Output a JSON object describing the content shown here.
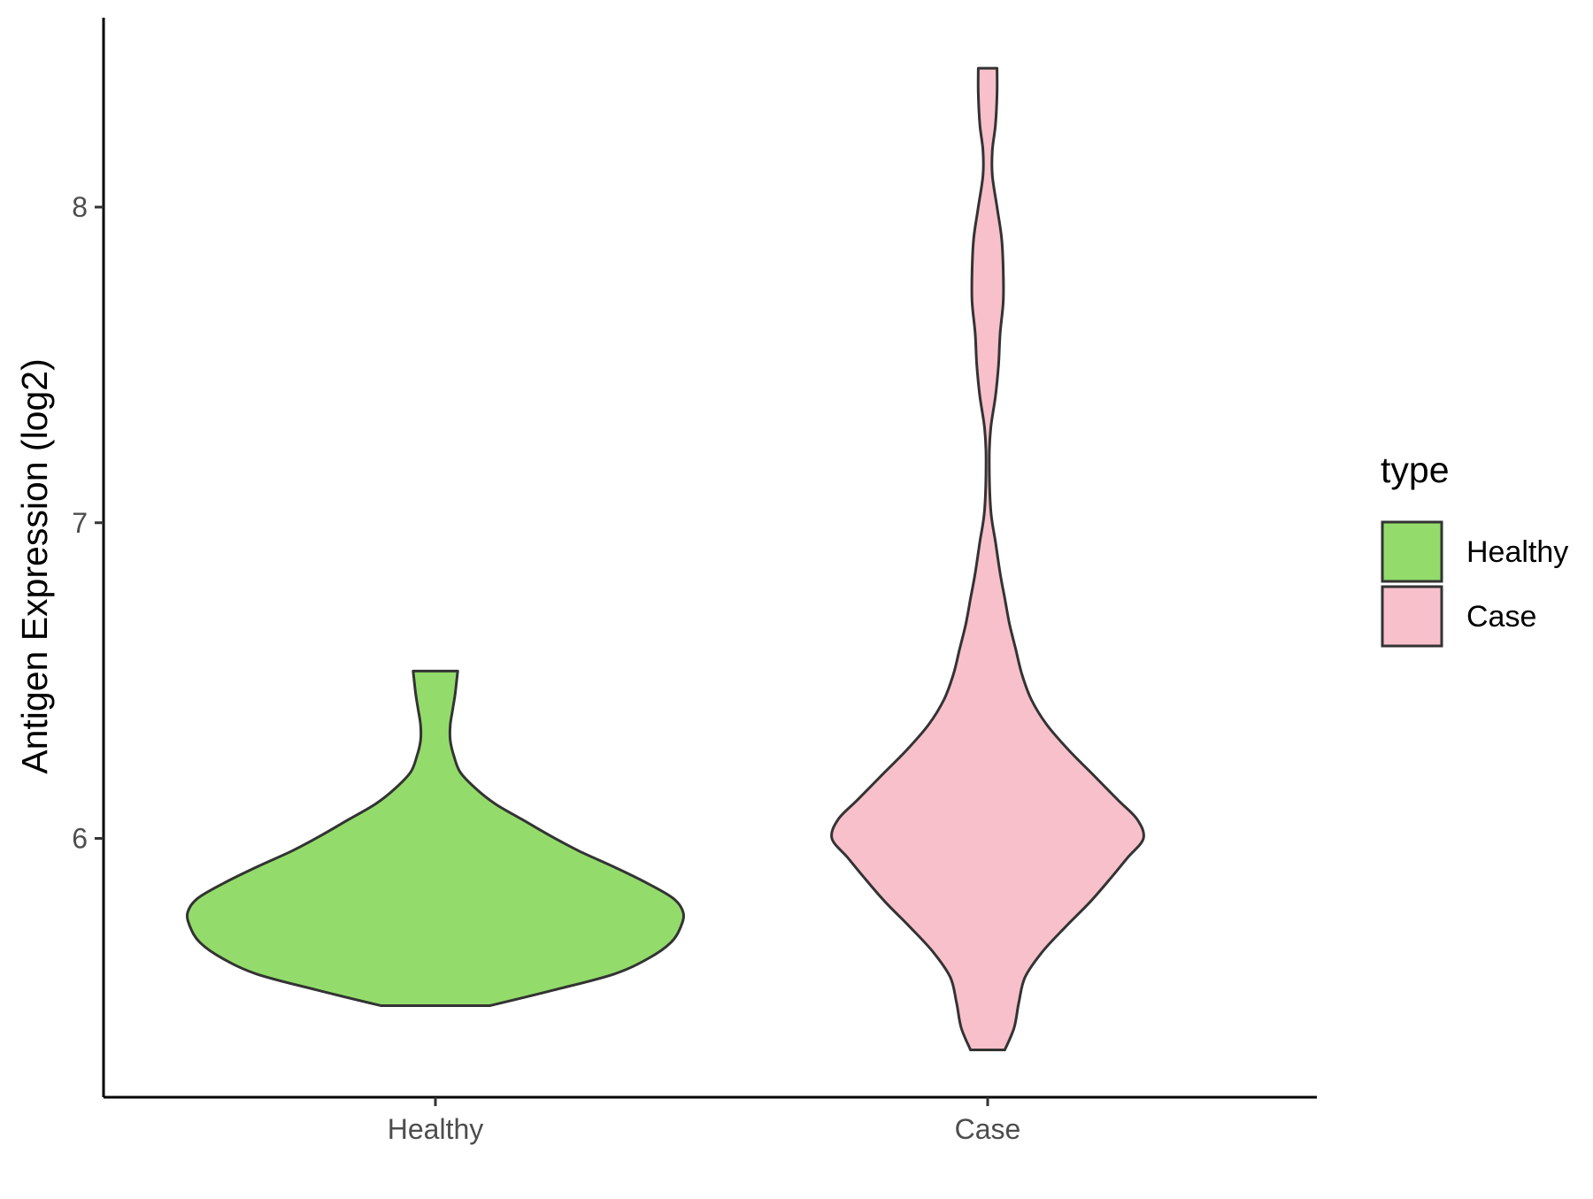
{
  "chart_data": {
    "type": "violin",
    "title": "",
    "xlabel": "",
    "ylabel": "Antigen Expression (log2)",
    "categories": [
      "Healthy",
      "Case"
    ],
    "yticks": [
      6,
      7,
      8
    ],
    "ylim": [
      5.18,
      8.6
    ],
    "grid": false,
    "legend": {
      "title": "type",
      "position": "right",
      "entries": [
        {
          "label": "Healthy",
          "color": "#93dc6b"
        },
        {
          "label": "Case",
          "color": "#f7c0cb"
        }
      ]
    },
    "outline_color": "#333333",
    "series": [
      {
        "category": "Healthy",
        "color": "#93dc6b",
        "ymin": 5.47,
        "ymax": 6.53,
        "density_profile": [
          [
            5.47,
            0.22
          ],
          [
            5.52,
            0.48
          ],
          [
            5.57,
            0.72
          ],
          [
            5.62,
            0.86
          ],
          [
            5.67,
            0.95
          ],
          [
            5.72,
            0.99
          ],
          [
            5.765,
            1.0
          ],
          [
            5.81,
            0.96
          ],
          [
            5.86,
            0.85
          ],
          [
            5.91,
            0.72
          ],
          [
            5.96,
            0.58
          ],
          [
            6.01,
            0.46
          ],
          [
            6.06,
            0.35
          ],
          [
            6.11,
            0.24
          ],
          [
            6.16,
            0.16
          ],
          [
            6.21,
            0.1
          ],
          [
            6.26,
            0.075
          ],
          [
            6.31,
            0.06
          ],
          [
            6.36,
            0.06
          ],
          [
            6.41,
            0.07
          ],
          [
            6.46,
            0.08
          ],
          [
            6.53,
            0.09
          ]
        ]
      },
      {
        "category": "Case",
        "color": "#f7c0cb",
        "ymin": 5.33,
        "ymax": 8.44,
        "density_profile": [
          [
            5.33,
            0.11
          ],
          [
            5.4,
            0.17
          ],
          [
            5.48,
            0.2
          ],
          [
            5.56,
            0.24
          ],
          [
            5.64,
            0.35
          ],
          [
            5.72,
            0.5
          ],
          [
            5.8,
            0.66
          ],
          [
            5.88,
            0.8
          ],
          [
            5.94,
            0.9
          ],
          [
            6.0,
            1.0
          ],
          [
            6.06,
            0.96
          ],
          [
            6.12,
            0.84
          ],
          [
            6.2,
            0.68
          ],
          [
            6.28,
            0.52
          ],
          [
            6.36,
            0.38
          ],
          [
            6.44,
            0.28
          ],
          [
            6.52,
            0.22
          ],
          [
            6.6,
            0.18
          ],
          [
            6.68,
            0.14
          ],
          [
            6.76,
            0.11
          ],
          [
            6.84,
            0.08
          ],
          [
            6.94,
            0.05
          ],
          [
            7.04,
            0.02
          ],
          [
            7.2,
            0.01
          ],
          [
            7.3,
            0.02
          ],
          [
            7.4,
            0.05
          ],
          [
            7.5,
            0.07
          ],
          [
            7.6,
            0.08
          ],
          [
            7.7,
            0.1
          ],
          [
            7.8,
            0.1
          ],
          [
            7.9,
            0.09
          ],
          [
            8.0,
            0.06
          ],
          [
            8.1,
            0.03
          ],
          [
            8.18,
            0.03
          ],
          [
            8.26,
            0.05
          ],
          [
            8.36,
            0.06
          ],
          [
            8.44,
            0.06
          ]
        ]
      }
    ]
  }
}
